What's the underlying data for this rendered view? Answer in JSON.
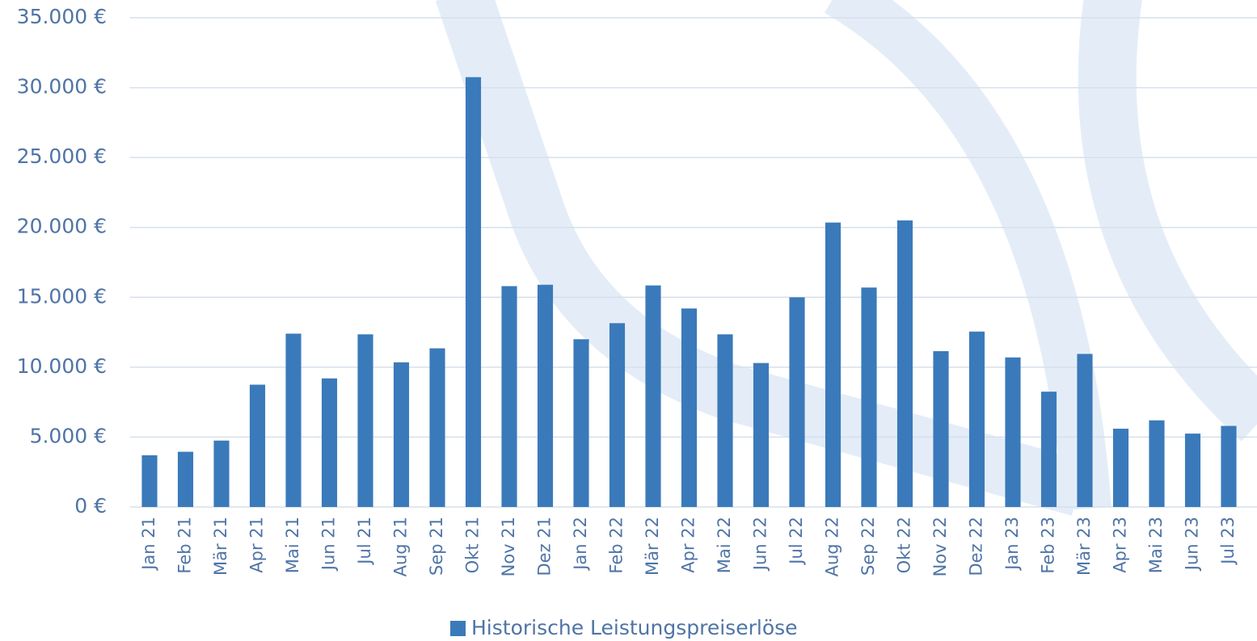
{
  "chart_data": {
    "type": "bar",
    "categories": [
      "Jan 21",
      "Feb 21",
      "Mär 21",
      "Apr 21",
      "Mai 21",
      "Jun 21",
      "Jul 21",
      "Aug 21",
      "Sep 21",
      "Okt 21",
      "Nov 21",
      "Dez 21",
      "Jan 22",
      "Feb 22",
      "Mär 22",
      "Apr 22",
      "Mai 22",
      "Jun 22",
      "Jul 22",
      "Aug 22",
      "Sep 22",
      "Okt 22",
      "Nov 22",
      "Dez 22",
      "Jan 23",
      "Feb 23",
      "Mär 23",
      "Apr 23",
      "Mai 23",
      "Jun 23",
      "Jul 23"
    ],
    "series": [
      {
        "name": "Historische Leistungspreiserlöse",
        "color": "#3a7aba",
        "values": [
          3700,
          3950,
          4750,
          8750,
          12400,
          9200,
          12350,
          10350,
          11350,
          30750,
          15800,
          15900,
          12000,
          13150,
          15850,
          14200,
          12350,
          10300,
          15000,
          20350,
          15700,
          20500,
          11150,
          12550,
          10700,
          8250,
          10950,
          5600,
          6200,
          5250,
          5800
        ]
      }
    ],
    "ylim": [
      0,
      35000
    ],
    "yticks": [
      {
        "value": 0,
        "label": "0 €"
      },
      {
        "value": 5000,
        "label": "5.000 €"
      },
      {
        "value": 10000,
        "label": "10.000 €"
      },
      {
        "value": 15000,
        "label": "15.000 €"
      },
      {
        "value": 20000,
        "label": "20.000 €"
      },
      {
        "value": 25000,
        "label": "25.000 €"
      },
      {
        "value": 30000,
        "label": "30.000 €"
      },
      {
        "value": 35000,
        "label": "35.000 €"
      }
    ],
    "grid": true,
    "legend": "bottom"
  }
}
